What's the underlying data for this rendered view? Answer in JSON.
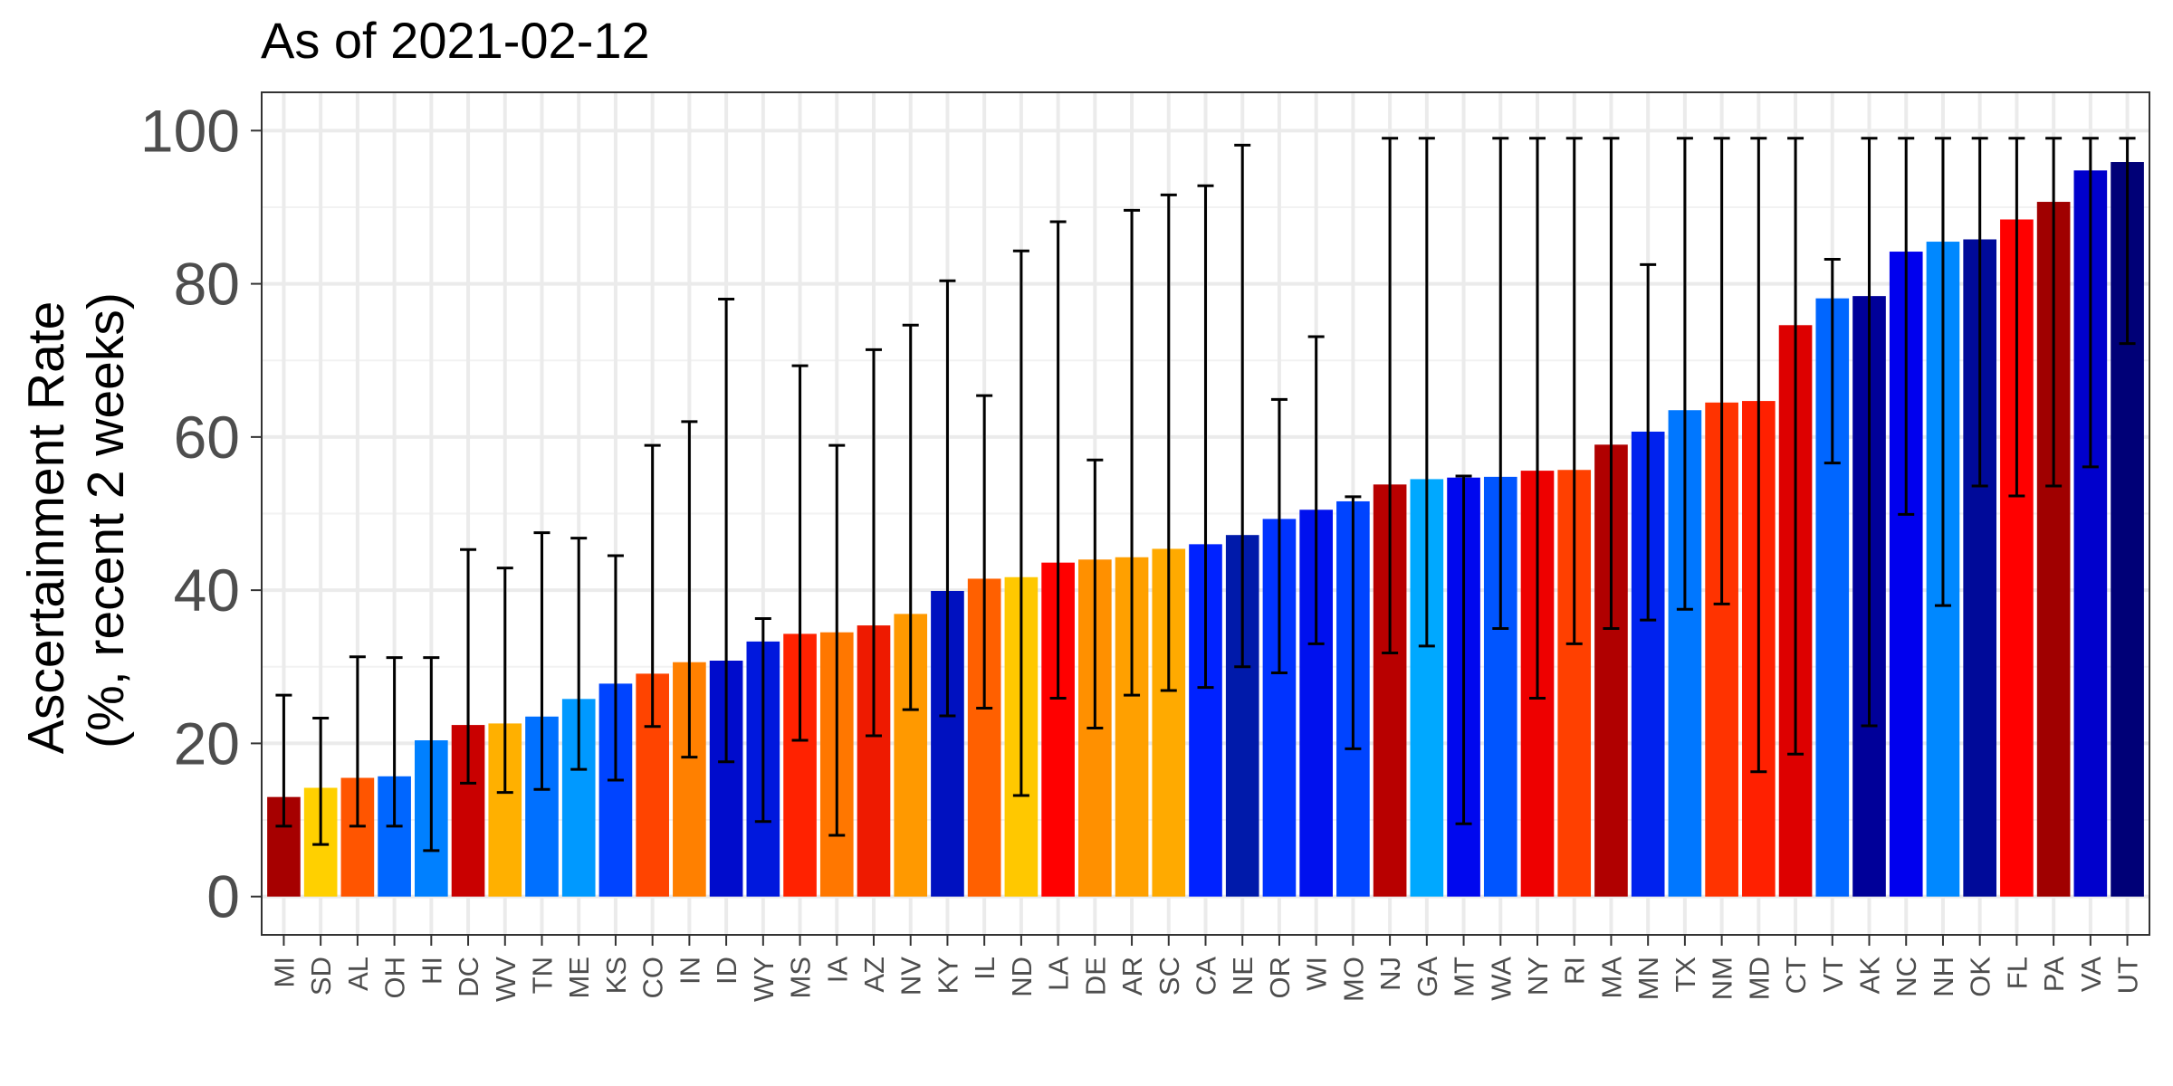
{
  "chart_data": {
    "type": "bar",
    "title": "As of 2021-02-12",
    "ylabel": [
      "Ascertainment Rate",
      "(%, recent 2 weeks)"
    ],
    "xlabel": "",
    "ylim": [
      -5,
      105
    ],
    "yticks": [
      "0",
      "20",
      "40",
      "60",
      "80",
      "100"
    ],
    "grid": true,
    "error_bars": true,
    "categories": [
      "MI",
      "SD",
      "AL",
      "OH",
      "HI",
      "DC",
      "WV",
      "TN",
      "ME",
      "KS",
      "CO",
      "IN",
      "ID",
      "WY",
      "MS",
      "IA",
      "AZ",
      "NV",
      "KY",
      "IL",
      "ND",
      "LA",
      "DE",
      "AR",
      "SC",
      "CA",
      "NE",
      "OR",
      "WI",
      "MO",
      "NJ",
      "GA",
      "MT",
      "WA",
      "NY",
      "RI",
      "MA",
      "MN",
      "TX",
      "NM",
      "MD",
      "CT",
      "VT",
      "AK",
      "NC",
      "NH",
      "OK",
      "FL",
      "PA",
      "VA",
      "UT"
    ],
    "values": [
      13.0,
      14.2,
      15.5,
      15.7,
      20.4,
      22.4,
      22.6,
      23.5,
      25.8,
      27.8,
      29.1,
      30.6,
      30.8,
      33.3,
      34.3,
      34.5,
      35.4,
      36.9,
      39.9,
      41.5,
      41.7,
      43.6,
      44.0,
      44.3,
      45.4,
      46.0,
      47.2,
      49.3,
      50.5,
      51.6,
      53.8,
      54.5,
      54.7,
      54.8,
      55.6,
      55.7,
      59.0,
      60.7,
      63.5,
      64.5,
      64.7,
      74.6,
      78.1,
      78.4,
      84.2,
      85.5,
      85.8,
      88.4,
      90.7,
      94.8,
      95.9
    ],
    "error_low": [
      9.2,
      6.8,
      9.2,
      9.2,
      6.0,
      14.8,
      13.6,
      14.0,
      16.6,
      15.2,
      22.2,
      18.2,
      17.6,
      9.8,
      20.4,
      8.0,
      21.0,
      24.4,
      23.6,
      24.6,
      13.2,
      25.9,
      22.0,
      26.3,
      26.9,
      27.3,
      30.0,
      29.2,
      33.0,
      19.3,
      31.8,
      32.7,
      9.5,
      35.0,
      25.9,
      33.0,
      35.0,
      36.1,
      37.5,
      38.2,
      16.3,
      18.6,
      56.6,
      22.3,
      49.9,
      38.0,
      53.6,
      52.3,
      53.6,
      56.1,
      72.2
    ],
    "error_high": [
      26.3,
      23.3,
      31.3,
      31.2,
      31.2,
      45.3,
      42.9,
      47.5,
      46.8,
      44.5,
      58.9,
      62.0,
      78.0,
      36.3,
      69.3,
      58.9,
      71.4,
      74.6,
      80.4,
      65.4,
      84.3,
      88.1,
      57.0,
      89.6,
      91.6,
      92.8,
      98.1,
      64.9,
      73.1,
      52.2,
      99.0,
      99.0,
      54.9,
      99.0,
      99.0,
      99.0,
      99.0,
      82.5,
      99.0,
      99.0,
      99.0,
      99.0,
      83.2,
      99.0,
      99.0,
      99.0,
      99.0,
      99.0,
      99.0,
      99.0,
      99.0
    ],
    "colors": [
      "#a60000",
      "#ffd000",
      "#ff5500",
      "#0066ff",
      "#0080ff",
      "#c90000",
      "#ffb000",
      "#0070ff",
      "#0099ff",
      "#0044ff",
      "#ff4400",
      "#ff8000",
      "#000ccc",
      "#0018dd",
      "#ff2200",
      "#ff7700",
      "#ee1a00",
      "#ff9900",
      "#0011c0",
      "#ff6000",
      "#ffc800",
      "#ff0000",
      "#ff9000",
      "#ffa000",
      "#ffaa00",
      "#0022ff",
      "#001aaa",
      "#0033ff",
      "#0011ee",
      "#0044ff",
      "#b80000",
      "#00a8ff",
      "#0008ee",
      "#0055ff",
      "#ee0000",
      "#ff4000",
      "#b00000",
      "#0022ee",
      "#0077ff",
      "#ff3300",
      "#ff2000",
      "#dd0000",
      "#0066ff",
      "#000099",
      "#0000ee",
      "#0088ff",
      "#000a99",
      "#ff0000",
      "#a00000",
      "#0000cc",
      "#000077"
    ]
  }
}
